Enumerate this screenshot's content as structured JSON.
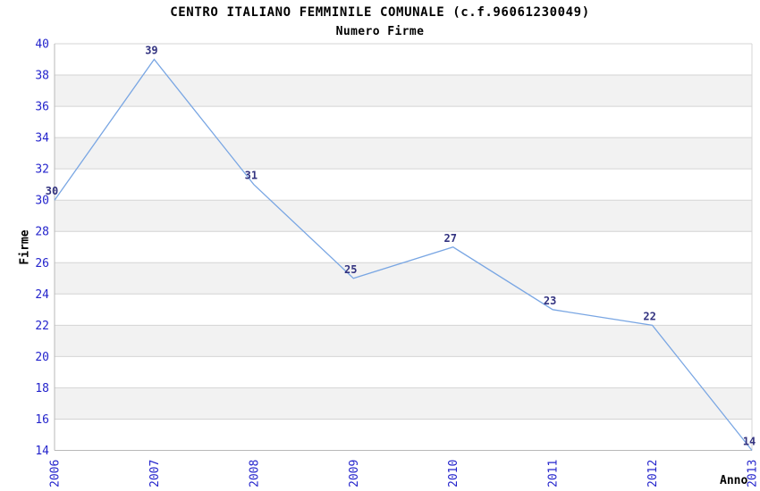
{
  "chart_data": {
    "type": "line",
    "title": "CENTRO ITALIANO FEMMINILE COMUNALE (c.f.96061230049)",
    "subtitle": "Numero Firme",
    "xlabel": "Anno",
    "ylabel": "Firme",
    "x": [
      "2006",
      "2007",
      "2008",
      "2009",
      "2010",
      "2011",
      "2012",
      "2013"
    ],
    "values": [
      30,
      39,
      31,
      25,
      27,
      23,
      22,
      14
    ],
    "ylim": [
      14,
      40
    ],
    "ytick_step": 2,
    "grid": true,
    "banding": "alternating-horizontal-bands",
    "legend": "none",
    "colors": {
      "line": "#79A6E3",
      "tick_labels": "#2424CC",
      "data_labels": "#333380",
      "band": "#F2F2F2",
      "grid": "#D4D4D4",
      "axis": "#B8B8B8",
      "text": "#000000",
      "background": "#FFFFFF"
    }
  }
}
